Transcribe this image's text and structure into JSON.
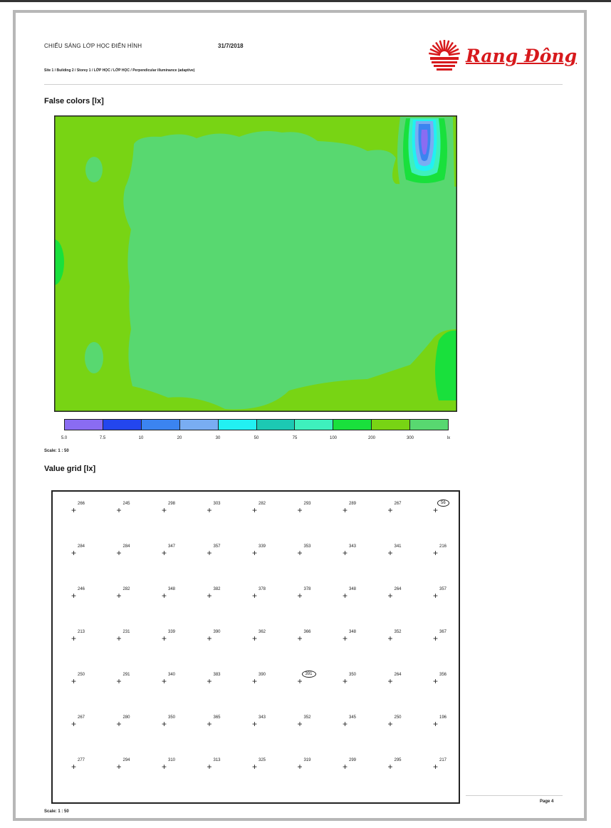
{
  "header": {
    "title": "CHIẾU SÁNG LỚP HỌC ĐIỂN HÌNH",
    "date": "31/7/2018",
    "path": "Site 1 / Building 2 / Storey 1 / LỚP HỌC / LỚP HỌC / Perpendicular illuminance (adaptive)",
    "brand": "Rang Đông"
  },
  "false_colors": {
    "title": "False colors [lx]",
    "scale_label": "Scale: 1 : 50",
    "legend_colors": [
      "#8a6cf2",
      "#2346ee",
      "#3b84f0",
      "#79adf2",
      "#22f0f2",
      "#1cc9b3",
      "#3ef0bd",
      "#19e03c",
      "#78d414",
      "#58d870"
    ],
    "legend_ticks": [
      "5.0",
      "7.5",
      "10",
      "20",
      "30",
      "50",
      "75",
      "100",
      "200",
      "300",
      "lx"
    ]
  },
  "value_grid": {
    "title": "Value grid [lx]",
    "scale_label": "Scale: 1 : 50",
    "rows": [
      [
        "266",
        "245",
        "298",
        "303",
        "282",
        "293",
        "289",
        "267",
        "56"
      ],
      [
        "284",
        "284",
        "347",
        "357",
        "339",
        "353",
        "343",
        "341",
        "216"
      ],
      [
        "246",
        "282",
        "348",
        "382",
        "378",
        "378",
        "348",
        "264",
        "357"
      ],
      [
        "213",
        "231",
        "339",
        "390",
        "362",
        "366",
        "348",
        "352",
        "367"
      ],
      [
        "250",
        "291",
        "340",
        "383",
        "390",
        "391",
        "350",
        "264",
        "356"
      ],
      [
        "267",
        "280",
        "350",
        "365",
        "343",
        "352",
        "345",
        "250",
        "196"
      ],
      [
        "277",
        "294",
        "310",
        "313",
        "325",
        "319",
        "299",
        "295",
        "217"
      ]
    ],
    "circled": [
      [
        0,
        8
      ],
      [
        4,
        5
      ]
    ]
  },
  "footer": {
    "page": "Page 4"
  }
}
